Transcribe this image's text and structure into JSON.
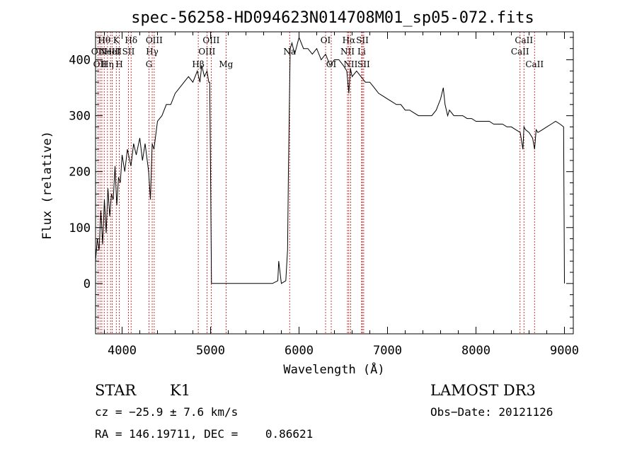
{
  "chart_data": {
    "type": "line",
    "title": "spec-56258-HD094623N014708M01_sp05-072.fits",
    "xlabel": "Wavelength (Å)",
    "ylabel": "Flux (relative)",
    "xlim": [
      3700,
      9100
    ],
    "ylim": [
      -90,
      450
    ],
    "xticks": [
      4000,
      5000,
      6000,
      7000,
      8000,
      9000
    ],
    "yticks": [
      0,
      100,
      200,
      300,
      400
    ],
    "grid": false,
    "legend": "none",
    "line_color": "#000000",
    "marker_color": "#cc0000",
    "series": [
      {
        "x": [
          3700,
          3720,
          3740,
          3760,
          3780,
          3800,
          3820,
          3840,
          3860,
          3880,
          3900,
          3920,
          3940,
          3960,
          3980,
          4000,
          4030,
          4060,
          4100,
          4130,
          4160,
          4200,
          4230,
          4260,
          4300,
          4320,
          4340,
          4360,
          4400,
          4450,
          4500,
          4550,
          4600,
          4650,
          4700,
          4750,
          4800,
          4850,
          4880,
          4900,
          4930,
          4960,
          4980,
          4990,
          5000,
          5010,
          5020,
          5100,
          5300,
          5500,
          5700,
          5760,
          5770,
          5800,
          5850,
          5870,
          5880,
          5900,
          5920,
          5950,
          6000,
          6050,
          6100,
          6150,
          6200,
          6250,
          6300,
          6350,
          6400,
          6450,
          6500,
          6540,
          6563,
          6580,
          6600,
          6650,
          6700,
          6750,
          6800,
          6850,
          6900,
          6950,
          7000,
          7050,
          7100,
          7150,
          7200,
          7250,
          7300,
          7350,
          7400,
          7450,
          7500,
          7550,
          7600,
          7630,
          7650,
          7680,
          7700,
          7750,
          7800,
          7850,
          7900,
          7950,
          8000,
          8050,
          8100,
          8150,
          8200,
          8250,
          8300,
          8350,
          8400,
          8450,
          8500,
          8530,
          8542,
          8560,
          8600,
          8640,
          8662,
          8680,
          8700,
          8750,
          8800,
          8850,
          8900,
          8950,
          8990,
          9000
        ],
        "y": [
          40,
          80,
          60,
          130,
          70,
          150,
          90,
          170,
          120,
          160,
          150,
          210,
          140,
          190,
          180,
          230,
          200,
          240,
          210,
          250,
          230,
          260,
          220,
          250,
          200,
          150,
          250,
          240,
          290,
          300,
          320,
          320,
          340,
          350,
          360,
          370,
          360,
          380,
          360,
          390,
          370,
          380,
          360,
          360,
          200,
          0,
          0,
          0,
          0,
          0,
          0,
          5,
          40,
          0,
          5,
          60,
          200,
          420,
          430,
          410,
          440,
          420,
          420,
          410,
          420,
          400,
          410,
          390,
          400,
          400,
          390,
          380,
          340,
          385,
          370,
          380,
          370,
          360,
          360,
          350,
          340,
          335,
          330,
          325,
          320,
          320,
          310,
          310,
          305,
          300,
          300,
          300,
          300,
          310,
          330,
          350,
          320,
          300,
          310,
          300,
          300,
          300,
          295,
          295,
          290,
          290,
          290,
          290,
          285,
          285,
          285,
          280,
          280,
          275,
          270,
          240,
          280,
          275,
          270,
          260,
          240,
          275,
          270,
          275,
          280,
          285,
          290,
          285,
          280,
          0
        ]
      }
    ],
    "line_markers": [
      {
        "wl": 3727,
        "label": "OII",
        "row": 2
      },
      {
        "wl": 3750,
        "label": "OII",
        "row": 3
      },
      {
        "wl": 3771,
        "label": "H",
        "row": 1
      },
      {
        "wl": 3798,
        "label": "Hθ",
        "row": 1
      },
      {
        "wl": 3835,
        "label": "Hη",
        "row": 3
      },
      {
        "wl": 3869,
        "label": "NeIII",
        "row": 2
      },
      {
        "wl": 3889,
        "label": "HeI",
        "row": 2
      },
      {
        "wl": 3934,
        "label": "K",
        "row": 1
      },
      {
        "wl": 3968,
        "label": "H",
        "row": 3
      },
      {
        "wl": 4072,
        "label": "SII",
        "row": 2
      },
      {
        "wl": 4102,
        "label": "Hδ",
        "row": 1
      },
      {
        "wl": 4304,
        "label": "G",
        "row": 3
      },
      {
        "wl": 4340,
        "label": "Hγ",
        "row": 2
      },
      {
        "wl": 4363,
        "label": "OIII",
        "row": 1
      },
      {
        "wl": 4861,
        "label": "Hβ",
        "row": 3
      },
      {
        "wl": 4959,
        "label": "OIII",
        "row": 2
      },
      {
        "wl": 5007,
        "label": "OIII",
        "row": 1
      },
      {
        "wl": 5175,
        "label": "Mg",
        "row": 3
      },
      {
        "wl": 5894,
        "label": "Na",
        "row": 2
      },
      {
        "wl": 6300,
        "label": "OI",
        "row": 1
      },
      {
        "wl": 6364,
        "label": "OI",
        "row": 3
      },
      {
        "wl": 6548,
        "label": "NII",
        "row": 2
      },
      {
        "wl": 6563,
        "label": "Hα",
        "row": 1
      },
      {
        "wl": 6583,
        "label": "NII",
        "row": 3
      },
      {
        "wl": 6707,
        "label": "Li",
        "row": 2
      },
      {
        "wl": 6716,
        "label": "SII",
        "row": 1
      },
      {
        "wl": 6731,
        "label": "SII",
        "row": 3
      },
      {
        "wl": 8498,
        "label": "CaII",
        "row": 2
      },
      {
        "wl": 8542,
        "label": "CaII",
        "row": 1
      },
      {
        "wl": 8662,
        "label": "CaII",
        "row": 3
      }
    ]
  },
  "info": {
    "object_type": "STAR",
    "subclass": "K1",
    "survey": "LAMOST DR3",
    "cz": "cz = −25.9 ± 7.6 km/s",
    "obs_date": "Obs−Date: 20121126",
    "radec": "RA = 146.19711, DEC =    0.86621"
  }
}
